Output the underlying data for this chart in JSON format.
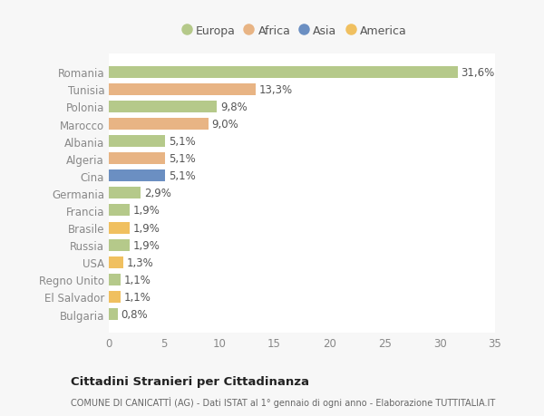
{
  "categories": [
    "Romania",
    "Tunisia",
    "Polonia",
    "Marocco",
    "Albania",
    "Algeria",
    "Cina",
    "Germania",
    "Francia",
    "Brasile",
    "Russia",
    "USA",
    "Regno Unito",
    "El Salvador",
    "Bulgaria"
  ],
  "values": [
    31.6,
    13.3,
    9.8,
    9.0,
    5.1,
    5.1,
    5.1,
    2.9,
    1.9,
    1.9,
    1.9,
    1.3,
    1.1,
    1.1,
    0.8
  ],
  "labels": [
    "31,6%",
    "13,3%",
    "9,8%",
    "9,0%",
    "5,1%",
    "5,1%",
    "5,1%",
    "2,9%",
    "1,9%",
    "1,9%",
    "1,9%",
    "1,3%",
    "1,1%",
    "1,1%",
    "0,8%"
  ],
  "continents": [
    "Europa",
    "Africa",
    "Europa",
    "Africa",
    "Europa",
    "Africa",
    "Asia",
    "Europa",
    "Europa",
    "America",
    "Europa",
    "America",
    "Europa",
    "America",
    "Europa"
  ],
  "continent_colors": {
    "Europa": "#b5c98a",
    "Africa": "#e8b484",
    "Asia": "#6b8fc2",
    "America": "#f0c060"
  },
  "legend_order": [
    "Europa",
    "Africa",
    "Asia",
    "America"
  ],
  "title": "Cittadini Stranieri per Cittadinanza",
  "subtitle": "COMUNE DI CANICATTÌ (AG) - Dati ISTAT al 1° gennaio di ogni anno - Elaborazione TUTTITALIA.IT",
  "xlim": [
    0,
    35
  ],
  "xticks": [
    0,
    5,
    10,
    15,
    20,
    25,
    30,
    35
  ],
  "background_color": "#f7f7f7",
  "plot_bg_color": "#ffffff",
  "grid_color": "#ffffff",
  "label_fontsize": 8.5,
  "tick_fontsize": 8.5,
  "bar_height": 0.68
}
